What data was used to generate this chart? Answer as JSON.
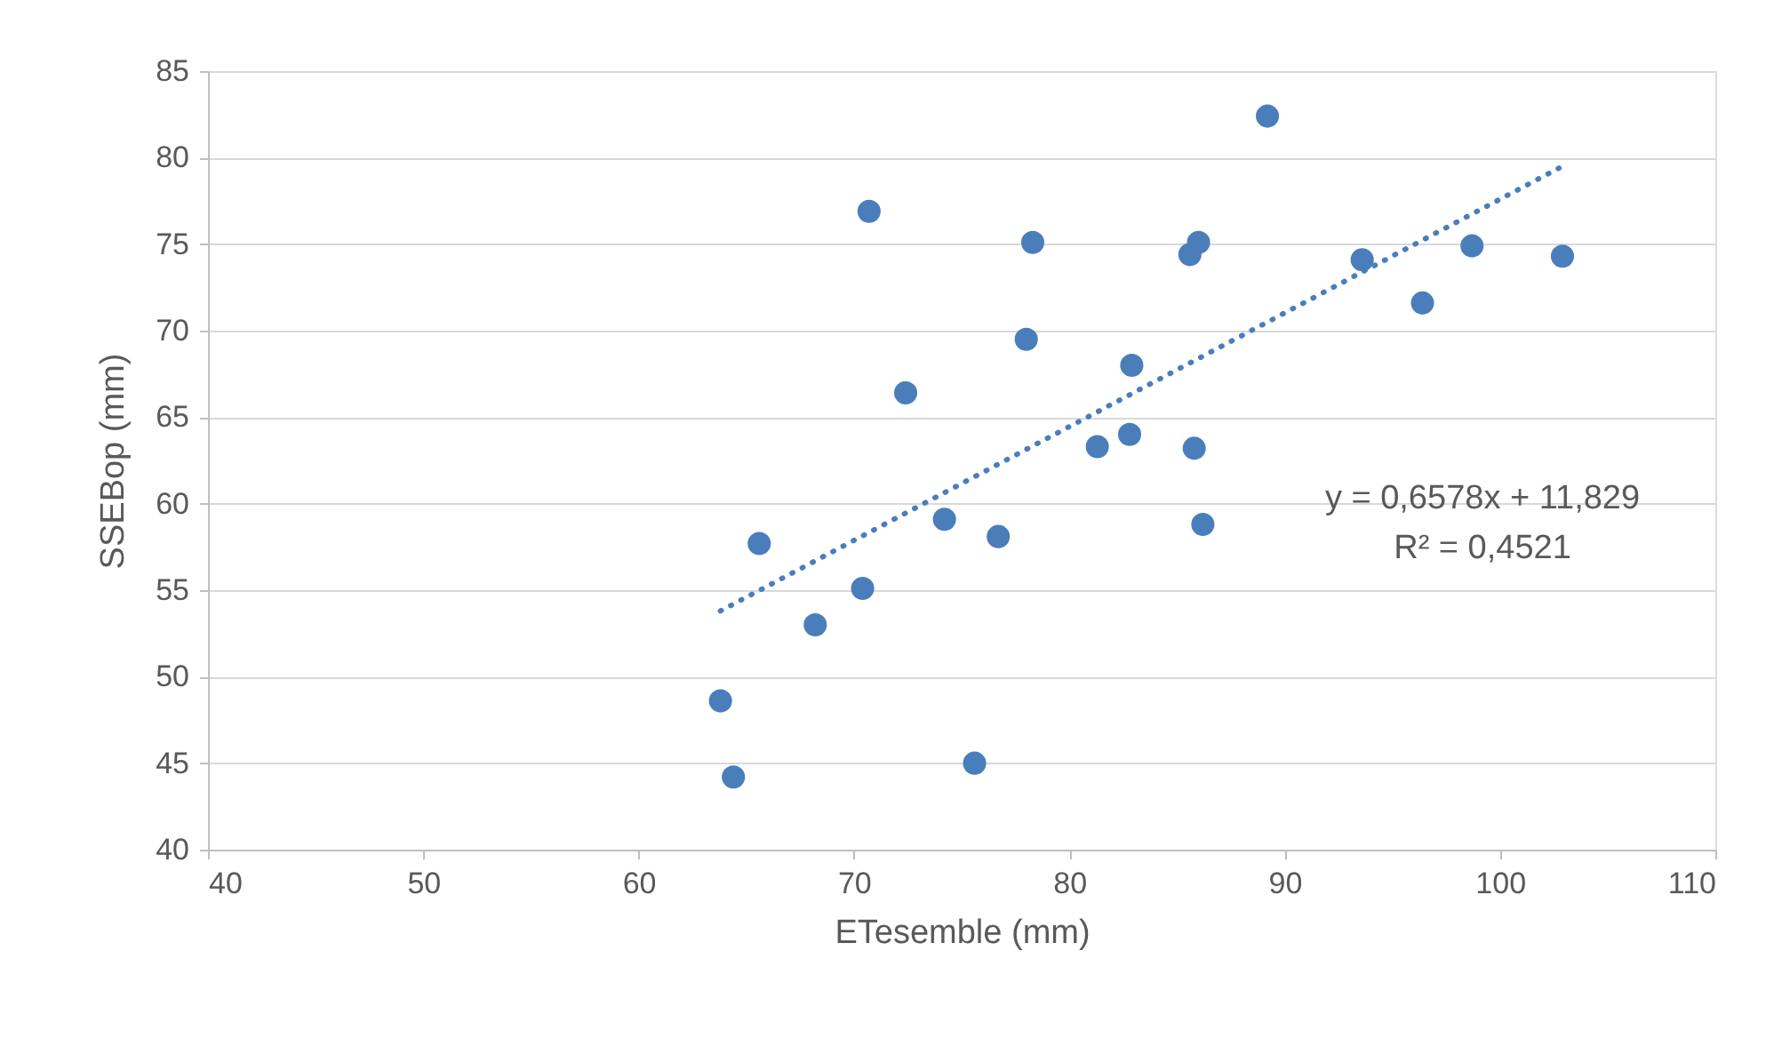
{
  "chart_data": {
    "type": "scatter",
    "xlabel": "ETesemble (mm)",
    "ylabel": "SSEBop (mm)",
    "xlim": [
      40,
      110
    ],
    "xticks": [
      40,
      50,
      60,
      70,
      80,
      90,
      100,
      110
    ],
    "ylim": [
      40,
      85
    ],
    "yticks": [
      40,
      45,
      50,
      55,
      60,
      65,
      70,
      75,
      80,
      85
    ],
    "grid": "y",
    "annotations": [
      "y = 0,6578x + 11,829",
      "R² = 0,4521"
    ],
    "series": [
      {
        "color": "#4a7ebb",
        "marker": "circle",
        "x": [
          63.8,
          64.4,
          65.6,
          68.2,
          70.4,
          70.7,
          72.4,
          74.2,
          75.6,
          76.7,
          78.0,
          78.3,
          81.3,
          82.8,
          82.9,
          85.6,
          86.0,
          85.8,
          86.2,
          89.2,
          93.6,
          96.4,
          98.7,
          102.9
        ],
        "values": [
          48.6,
          44.2,
          57.7,
          53.0,
          55.1,
          76.9,
          66.4,
          59.1,
          45.0,
          58.1,
          69.5,
          75.1,
          63.3,
          64.0,
          68.0,
          74.4,
          75.1,
          63.2,
          58.8,
          82.4,
          74.1,
          71.6,
          74.9,
          74.3
        ]
      },
      {
        "type": "line",
        "color": "#4a7ebb",
        "line_style": "dotted",
        "x": [
          63.8,
          102.9
        ],
        "values": [
          53.8,
          79.5
        ]
      }
    ]
  }
}
